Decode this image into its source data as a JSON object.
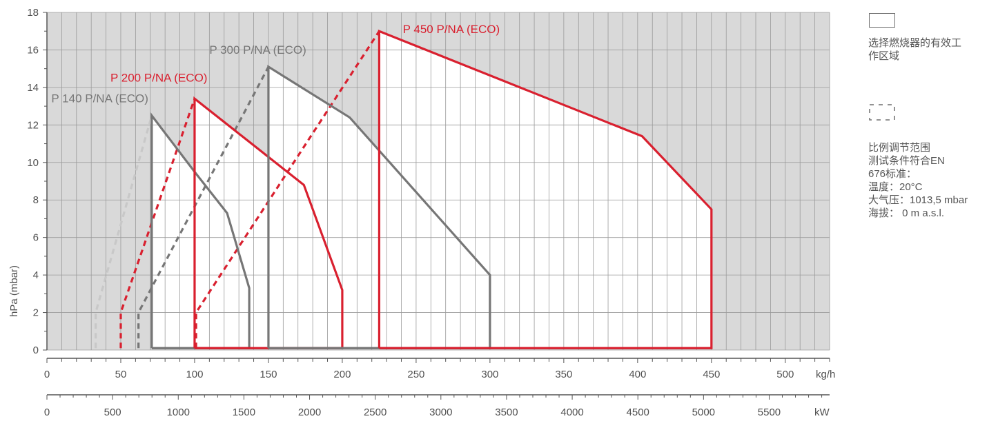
{
  "chart_data": {
    "type": "line",
    "ylabel": "hPa (mbar)",
    "ylim": [
      0,
      18
    ],
    "y_ticks": [
      "0",
      "2",
      "4",
      "6",
      "8",
      "10",
      "12",
      "14",
      "16",
      "18"
    ],
    "x_kgh_ticks": [
      "0",
      "50",
      "100",
      "150",
      "200",
      "250",
      "300",
      "350",
      "400",
      "450",
      "500"
    ],
    "x_kgh_unit": "kg/h",
    "x_kgh_range": [
      0,
      530
    ],
    "x_kw_ticks": [
      "0",
      "500",
      "1000",
      "1500",
      "2000",
      "2500",
      "3000",
      "3500",
      "4000",
      "4500",
      "5000",
      "5500"
    ],
    "x_kw_unit": "kW",
    "x_kw_range": [
      0,
      5960
    ],
    "grid": true,
    "series": [
      {
        "name": "P 140 P/NA (ECO)",
        "color": "#767676",
        "dashed_color": "#c8c8c8",
        "label_at": [
          3,
          13.2
        ],
        "outline": [
          [
            71,
            0.1
          ],
          [
            71,
            12.5
          ],
          [
            100,
            9.5
          ],
          [
            122,
            7.3
          ],
          [
            137,
            3.3
          ],
          [
            137,
            0.1
          ],
          [
            71,
            0.1
          ]
        ],
        "dashed": [
          [
            33,
            0.1
          ],
          [
            33,
            2
          ],
          [
            71,
            12.5
          ]
        ],
        "min_line": [
          [
            76,
            0
          ],
          [
            76,
            0.1
          ]
        ]
      },
      {
        "name": "P 200 P/NA (ECO)",
        "color": "#d9202f",
        "dashed_color": "#d9202f",
        "label_at": [
          43,
          14.3
        ],
        "outline": [
          [
            100,
            0.1
          ],
          [
            100,
            13.4
          ],
          [
            174,
            8.8
          ],
          [
            200,
            3.2
          ],
          [
            200,
            0.1
          ],
          [
            100,
            0.1
          ]
        ],
        "dashed": [
          [
            50,
            0.1
          ],
          [
            50,
            2
          ],
          [
            100,
            13.4
          ]
        ],
        "min_line": [
          [
            101,
            0
          ],
          [
            101,
            0.1
          ]
        ]
      },
      {
        "name": "P 300 P/NA (ECO)",
        "color": "#767676",
        "dashed_color": "#767676",
        "label_at": [
          110,
          15.8
        ],
        "outline": [
          [
            150,
            0.1
          ],
          [
            150,
            15.1
          ],
          [
            205,
            12.4
          ],
          [
            300,
            4
          ],
          [
            300,
            0.1
          ],
          [
            150,
            0.1
          ]
        ],
        "dashed": [
          [
            62,
            0.1
          ],
          [
            62,
            2
          ],
          [
            150,
            15.1
          ]
        ],
        "min_line": [
          [
            151,
            0
          ],
          [
            151,
            0.1
          ]
        ]
      },
      {
        "name": "P 450 P/NA (ECO)",
        "color": "#d9202f",
        "dashed_color": "#d9202f",
        "label_at": [
          241,
          16.9
        ],
        "outline": [
          [
            225,
            0.1
          ],
          [
            225,
            17
          ],
          [
            403,
            11.4
          ],
          [
            450,
            7.5
          ],
          [
            450,
            0.1
          ],
          [
            225,
            0.1
          ]
        ],
        "dashed": [
          [
            101,
            0.1
          ],
          [
            101,
            2
          ],
          [
            225,
            17
          ]
        ],
        "min_line": [
          [
            102,
            0
          ],
          [
            102,
            0.1
          ]
        ]
      }
    ]
  },
  "legend": {
    "solid_label_1": "选择燃烧器的有效工",
    "solid_label_2": "作区域",
    "dashed_lines": [
      "比例调节范围",
      "测试条件符合EN",
      "676标准：",
      "温度：20°C",
      "大气压：1013,5 mbar",
      "海拔： 0 m a.s.l."
    ]
  }
}
